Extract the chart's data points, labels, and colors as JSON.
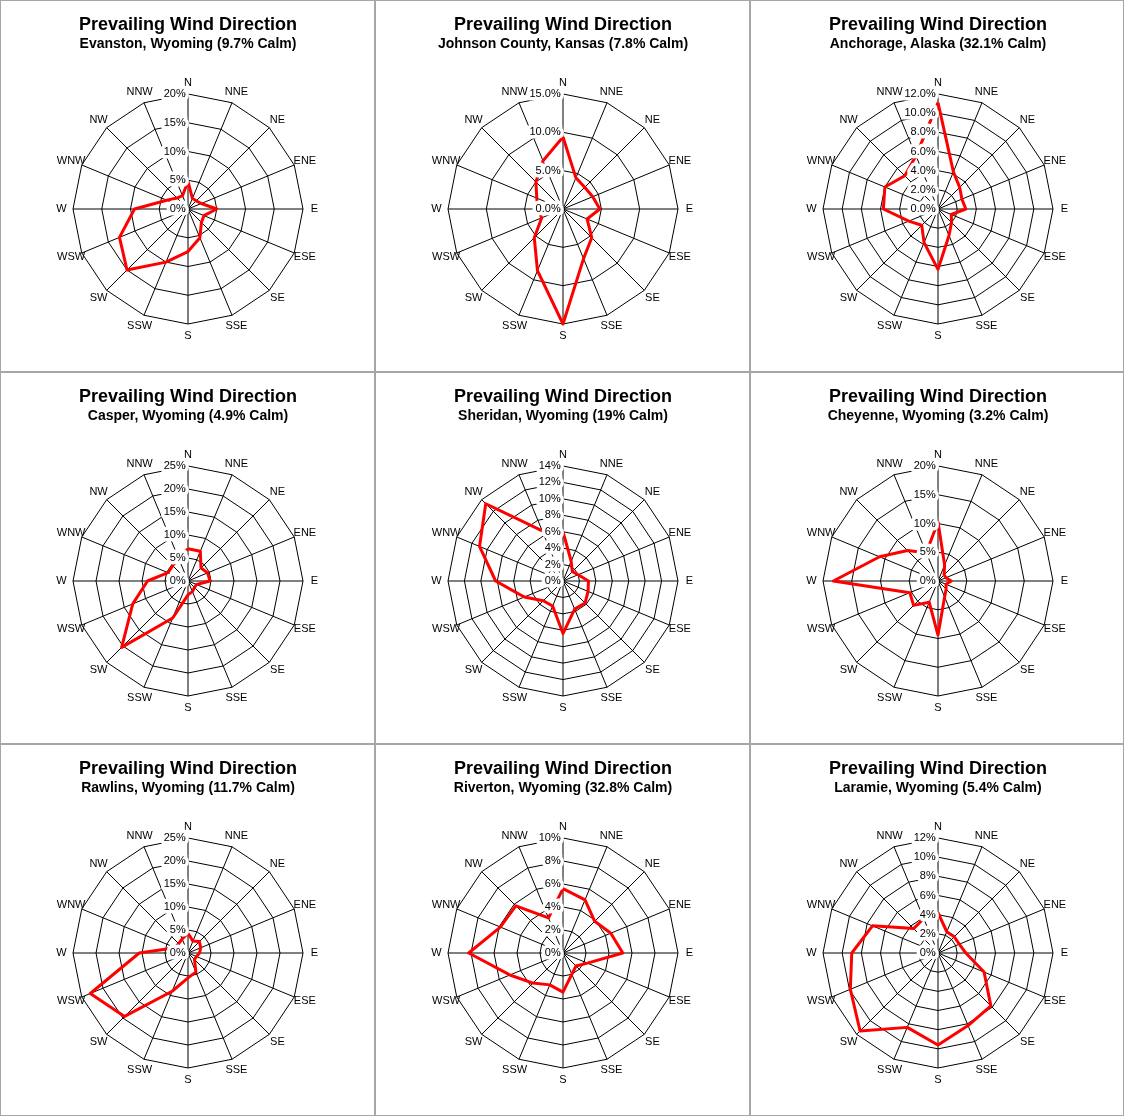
{
  "chart_data": [
    {
      "type": "radar",
      "title": "Prevailing Wind Direction",
      "subtitle": "Evanston, Wyoming (9.7% Calm)",
      "categories": [
        "N",
        "NNE",
        "NE",
        "ENE",
        "E",
        "ESE",
        "SE",
        "SSE",
        "S",
        "SSW",
        "SW",
        "WSW",
        "W",
        "WNW",
        "NW",
        "NNW"
      ],
      "series": [
        {
          "color": "#ff0000",
          "values": [
            4.8,
            2,
            2,
            2.5,
            5,
            3,
            3.3,
            5.4,
            7.4,
            10,
            15,
            12.9,
            9.3,
            4,
            2.7,
            2.5
          ]
        }
      ],
      "ylim": [
        0,
        20
      ],
      "yticks": [
        {
          "value": 0,
          "label": "0%"
        },
        {
          "value": 5,
          "label": "5%"
        },
        {
          "value": 10,
          "label": "10%"
        },
        {
          "value": 15,
          "label": "15%"
        },
        {
          "value": 20,
          "label": "20%"
        }
      ],
      "grid": true
    },
    {
      "type": "radar",
      "title": "Prevailing Wind Direction",
      "subtitle": "Johnson County, Kansas (7.8% Calm)",
      "categories": [
        "N",
        "NNE",
        "NE",
        "ENE",
        "E",
        "ESE",
        "SE",
        "SSE",
        "S",
        "SSW",
        "SW",
        "WSW",
        "W",
        "WNW",
        "NW",
        "NNW"
      ],
      "series": [
        {
          "color": "#ff0000",
          "values": [
            9.4,
            4.4,
            4,
            4.2,
            4.8,
            3.4,
            5.3,
            7,
            15,
            8.7,
            5.3,
            3,
            3.3,
            3.7,
            5,
            6.8
          ]
        }
      ],
      "ylim": [
        0,
        15
      ],
      "yticks": [
        {
          "value": 0,
          "label": "0.0%"
        },
        {
          "value": 5,
          "label": "5.0%"
        },
        {
          "value": 10,
          "label": "10.0%"
        },
        {
          "value": 15,
          "label": "15.0%"
        }
      ],
      "grid": true
    },
    {
      "type": "radar",
      "title": "Prevailing Wind Direction",
      "subtitle": "Anchorage, Alaska (32.1% Calm)",
      "categories": [
        "N",
        "NNE",
        "NE",
        "ENE",
        "E",
        "ESE",
        "SE",
        "SSE",
        "S",
        "SSW",
        "SW",
        "WSW",
        "W",
        "WNW",
        "NW",
        "NNW"
      ],
      "series": [
        {
          "color": "#ff0000",
          "values": [
            11.1,
            4.2,
            3.2,
            2.7,
            2.9,
            1.5,
            2,
            3,
            6.3,
            3.8,
            2.4,
            3.3,
            5.7,
            6,
            4.9,
            6
          ]
        }
      ],
      "ylim": [
        0,
        12
      ],
      "yticks": [
        {
          "value": 0,
          "label": "0.0%"
        },
        {
          "value": 2,
          "label": "2.0%"
        },
        {
          "value": 4,
          "label": "4.0%"
        },
        {
          "value": 6,
          "label": "6.0%"
        },
        {
          "value": 8,
          "label": "8.0%"
        },
        {
          "value": 10,
          "label": "10.0%"
        },
        {
          "value": 12,
          "label": "12.0%"
        }
      ],
      "grid": true
    },
    {
      "type": "radar",
      "title": "Prevailing Wind Direction",
      "subtitle": "Casper, Wyoming (4.9% Calm)",
      "categories": [
        "N",
        "NNE",
        "NE",
        "ENE",
        "E",
        "ESE",
        "SE",
        "SSE",
        "S",
        "SSW",
        "SW",
        "WSW",
        "W",
        "WNW",
        "NW",
        "NNW"
      ],
      "series": [
        {
          "color": "#ff0000",
          "values": [
            7,
            7,
            4,
            4.6,
            4.8,
            2,
            2,
            2.5,
            3,
            8.7,
            20.4,
            13,
            8.8,
            4.7,
            4.7,
            5.5
          ]
        }
      ],
      "ylim": [
        0,
        25
      ],
      "yticks": [
        {
          "value": 0,
          "label": "0%"
        },
        {
          "value": 5,
          "label": "5%"
        },
        {
          "value": 10,
          "label": "10%"
        },
        {
          "value": 15,
          "label": "15%"
        },
        {
          "value": 20,
          "label": "20%"
        },
        {
          "value": 25,
          "label": "25%"
        }
      ],
      "grid": true
    },
    {
      "type": "radar",
      "title": "Prevailing Wind Direction",
      "subtitle": "Sheridan, Wyoming (19% Calm)",
      "categories": [
        "N",
        "NNE",
        "NE",
        "ENE",
        "E",
        "ESE",
        "SE",
        "SSE",
        "S",
        "SSW",
        "SW",
        "WSW",
        "W",
        "WNW",
        "NW",
        "NNW"
      ],
      "series": [
        {
          "color": "#ff0000",
          "values": [
            6,
            2.6,
            1.6,
            2,
            3.1,
            3.3,
            3.8,
            3.7,
            6.4,
            3.3,
            3.4,
            5.1,
            8.2,
            11,
            13.3,
            6.6
          ]
        }
      ],
      "ylim": [
        0,
        14
      ],
      "yticks": [
        {
          "value": 0,
          "label": "0%"
        },
        {
          "value": 2,
          "label": "2%"
        },
        {
          "value": 4,
          "label": "4%"
        },
        {
          "value": 6,
          "label": "6%"
        },
        {
          "value": 8,
          "label": "8%"
        },
        {
          "value": 10,
          "label": "10%"
        },
        {
          "value": 12,
          "label": "12%"
        },
        {
          "value": 14,
          "label": "14%"
        }
      ],
      "grid": true
    },
    {
      "type": "radar",
      "title": "Prevailing Wind Direction",
      "subtitle": "Cheyenne, Wyoming (3.2% Calm)",
      "categories": [
        "N",
        "NNE",
        "NE",
        "ENE",
        "E",
        "ESE",
        "SE",
        "SSE",
        "S",
        "SSW",
        "SW",
        "WSW",
        "W",
        "WNW",
        "NW",
        "NNW"
      ],
      "series": [
        {
          "color": "#ff0000",
          "values": [
            10.3,
            3,
            1.5,
            1.5,
            2.3,
            1.5,
            2,
            3,
            9.4,
            4,
            6,
            5.3,
            18.2,
            11,
            7.5,
            5.3
          ]
        }
      ],
      "ylim": [
        0,
        20
      ],
      "yticks": [
        {
          "value": 0,
          "label": "0%"
        },
        {
          "value": 5,
          "label": "5%"
        },
        {
          "value": 10,
          "label": "10%"
        },
        {
          "value": 15,
          "label": "15%"
        },
        {
          "value": 20,
          "label": "20%"
        }
      ],
      "grid": true
    },
    {
      "type": "radar",
      "title": "Prevailing Wind Direction",
      "subtitle": "Rawlins, Wyoming (11.7% Calm)",
      "categories": [
        "N",
        "NNE",
        "NE",
        "ENE",
        "E",
        "ESE",
        "SE",
        "SSE",
        "S",
        "SSW",
        "SW",
        "WSW",
        "W",
        "WNW",
        "NW",
        "NNW"
      ],
      "series": [
        {
          "color": "#ff0000",
          "values": [
            4.3,
            2.8,
            3.5,
            3,
            2.5,
            2,
            2,
            4.5,
            5.4,
            9,
            19.5,
            23,
            10.6,
            3,
            2.9,
            3.3
          ]
        }
      ],
      "ylim": [
        0,
        25
      ],
      "yticks": [
        {
          "value": 0,
          "label": "0%"
        },
        {
          "value": 5,
          "label": "5%"
        },
        {
          "value": 10,
          "label": "10%"
        },
        {
          "value": 15,
          "label": "15%"
        },
        {
          "value": 20,
          "label": "20%"
        },
        {
          "value": 25,
          "label": "25%"
        }
      ],
      "grid": true
    },
    {
      "type": "radar",
      "title": "Prevailing Wind Direction",
      "subtitle": "Riverton, Wyoming (32.8% Calm)",
      "categories": [
        "N",
        "NNE",
        "NE",
        "ENE",
        "E",
        "ESE",
        "SE",
        "SSE",
        "S",
        "SSW",
        "SW",
        "WSW",
        "W",
        "WNW",
        "NW",
        "NNW"
      ],
      "series": [
        {
          "color": "#ff0000",
          "values": [
            5.6,
            5,
            3.9,
            4.5,
            5.2,
            2.3,
            1.6,
            2,
            3.4,
            3,
            3.7,
            5,
            8.2,
            5.9,
            5.8,
            3.3
          ]
        }
      ],
      "ylim": [
        0,
        10
      ],
      "yticks": [
        {
          "value": 0,
          "label": "0%"
        },
        {
          "value": 2,
          "label": "2%"
        },
        {
          "value": 4,
          "label": "4%"
        },
        {
          "value": 6,
          "label": "6%"
        },
        {
          "value": 8,
          "label": "8%"
        },
        {
          "value": 10,
          "label": "10%"
        }
      ],
      "grid": true
    },
    {
      "type": "radar",
      "title": "Prevailing Wind Direction",
      "subtitle": "Laramie, Wyoming (5.4% Calm)",
      "categories": [
        "N",
        "NNE",
        "NE",
        "ENE",
        "E",
        "ESE",
        "SE",
        "SSE",
        "S",
        "SSW",
        "SW",
        "WSW",
        "W",
        "WNW",
        "NW",
        "NNW"
      ],
      "series": [
        {
          "color": "#ff0000",
          "values": [
            4.2,
            2.4,
            2.4,
            2.4,
            2.9,
            5.2,
            7.8,
            8.2,
            9.6,
            8.4,
            11.5,
            9.9,
            9,
            7.4,
            3.6,
            3.9
          ]
        }
      ],
      "ylim": [
        0,
        12
      ],
      "yticks": [
        {
          "value": 0,
          "label": "0%"
        },
        {
          "value": 2,
          "label": "2%"
        },
        {
          "value": 4,
          "label": "4%"
        },
        {
          "value": 6,
          "label": "6%"
        },
        {
          "value": 8,
          "label": "8%"
        },
        {
          "value": 10,
          "label": "10%"
        },
        {
          "value": 12,
          "label": "12%"
        }
      ],
      "grid": true
    }
  ]
}
